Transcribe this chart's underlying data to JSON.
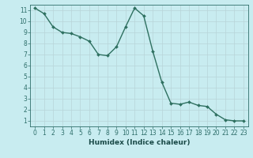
{
  "x": [
    0,
    1,
    2,
    3,
    4,
    5,
    6,
    7,
    8,
    9,
    10,
    11,
    12,
    13,
    14,
    15,
    16,
    17,
    18,
    19,
    20,
    21,
    22,
    23
  ],
  "y": [
    11.2,
    10.7,
    9.5,
    9.0,
    8.9,
    8.6,
    8.2,
    7.0,
    6.9,
    7.7,
    9.5,
    11.2,
    10.5,
    7.3,
    4.5,
    2.6,
    2.5,
    2.7,
    2.4,
    2.3,
    1.6,
    1.1,
    1.0,
    1.0
  ],
  "line_color": "#2e7060",
  "marker": "D",
  "marker_size": 2.0,
  "line_width": 1.0,
  "background_color": "#c8ecf0",
  "grid_color": "#b8d4d8",
  "xlabel": "Humidex (Indice chaleur)",
  "xlim": [
    -0.5,
    23.5
  ],
  "ylim": [
    0.5,
    11.5
  ],
  "yticks": [
    1,
    2,
    3,
    4,
    5,
    6,
    7,
    8,
    9,
    10,
    11
  ],
  "xticks": [
    0,
    1,
    2,
    3,
    4,
    5,
    6,
    7,
    8,
    9,
    10,
    11,
    12,
    13,
    14,
    15,
    16,
    17,
    18,
    19,
    20,
    21,
    22,
    23
  ],
  "tick_color": "#2e6e6a",
  "label_color": "#1a4a48",
  "xlabel_fontsize": 6.5,
  "tick_fontsize": 5.5
}
